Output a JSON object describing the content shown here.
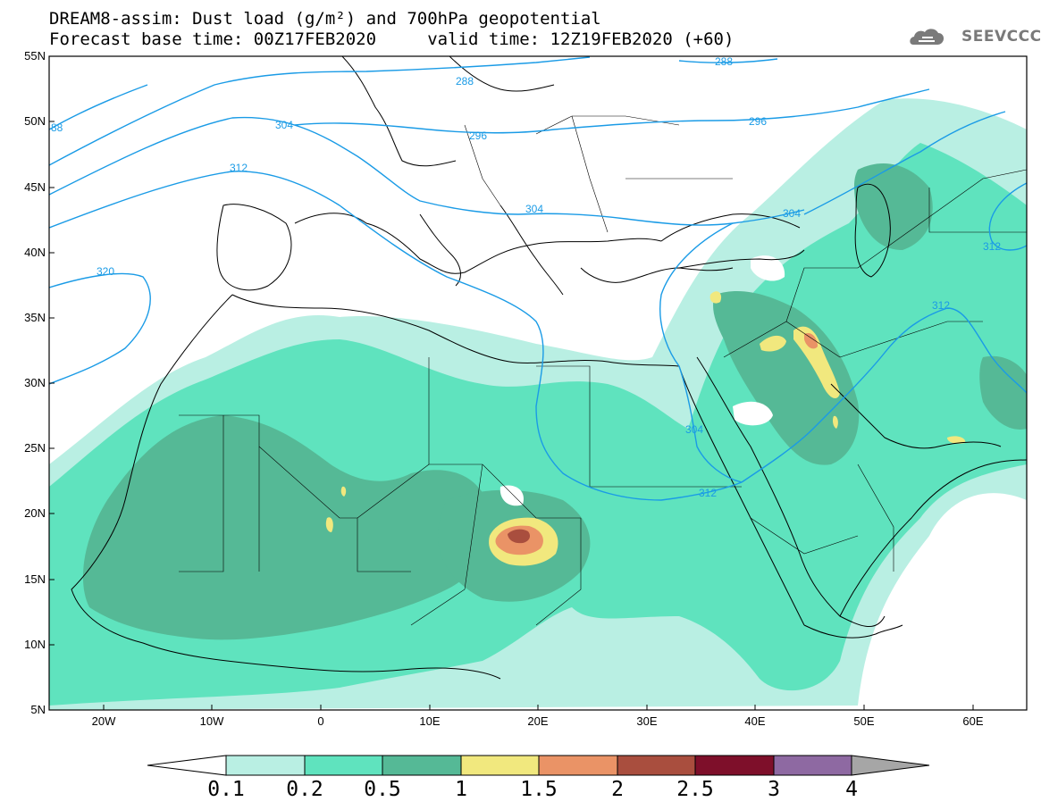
{
  "header": {
    "title_line1": "DREAM8-assim: Dust load (g/m²) and 700hPa geopotential",
    "title_line2": "Forecast base time: 00Z17FEB2020     valid time: 12Z19FEB2020 (+60)",
    "logo_text": "SEEVCCC",
    "logo_icon": "cloud-icon"
  },
  "map": {
    "extent": {
      "lon_min": -25,
      "lon_max": 65,
      "lat_min": 5,
      "lat_max": 55
    },
    "lat_labels": [
      "55N",
      "50N",
      "45N",
      "40N",
      "35N",
      "30N",
      "25N",
      "20N",
      "15N",
      "10N",
      "5N"
    ],
    "lon_labels": [
      "20W",
      "10W",
      "0",
      "10E",
      "20E",
      "30E",
      "40E",
      "50E",
      "60E"
    ],
    "contour_labels": [
      "288",
      "288",
      "304",
      "296",
      "296",
      "312",
      "304",
      "304",
      "312",
      "312",
      "320",
      "304",
      "312",
      "88"
    ],
    "contour_color": "#1a9be6"
  },
  "colorbar": {
    "ticks": [
      "0.1",
      "0.2",
      "0.5",
      "1",
      "1.5",
      "2",
      "2.5",
      "3",
      "4"
    ],
    "colors": [
      "#ffffff",
      "#b9efe3",
      "#5fe3be",
      "#55b996",
      "#f1e87e",
      "#ea9366",
      "#a94e3e",
      "#7e0f2a",
      "#8e69a2",
      "#a6a6a6"
    ]
  }
}
